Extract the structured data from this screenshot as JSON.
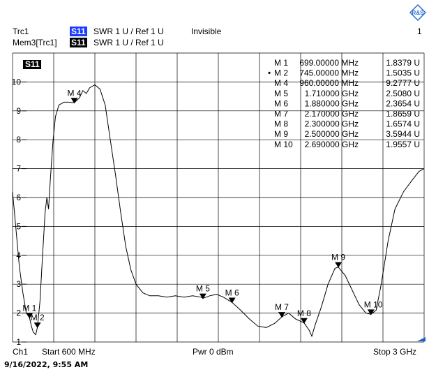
{
  "header": {
    "trace1_name": "Trc1",
    "trace1_tag": "S11",
    "trace1_format": "SWR  1 U /  Ref 1 U",
    "trace1_state": "Invisible",
    "trace2_name": "Mem3[Trc1]",
    "trace2_tag": "S11",
    "trace2_format": "SWR  1 U /  Ref 1 U",
    "channel_number": "1",
    "logo_text": "R&S"
  },
  "plot": {
    "label": "S11",
    "y_tick_labels": [
      "10",
      "9",
      "8",
      "7",
      "6",
      "5",
      "4",
      "3",
      "2",
      "1"
    ]
  },
  "markers": [
    {
      "name": "M 1",
      "label": "M 1",
      "value": "699.00000 MHz",
      "reading": "1.8379 U",
      "active": false
    },
    {
      "name": "M 2",
      "label": "M 2",
      "value": "745.00000 MHz",
      "reading": "1.5035 U",
      "active": true
    },
    {
      "name": "M 4",
      "label": "M 4",
      "value": "960.00000 MHz",
      "reading": "9.2777 U",
      "active": false
    },
    {
      "name": "M 5",
      "label": "M 5",
      "value": "1.710000 GHz",
      "reading": "2.5080 U",
      "active": false
    },
    {
      "name": "M 6",
      "label": "M 6",
      "value": "1.880000 GHz",
      "reading": "2.3654 U",
      "active": false
    },
    {
      "name": "M 7",
      "label": "M 7",
      "value": "2.170000 GHz",
      "reading": "1.8659 U",
      "active": false
    },
    {
      "name": "M 8",
      "label": "M 8",
      "value": "2.300000 GHz",
      "reading": "1.6574 U",
      "active": false
    },
    {
      "name": "M 9",
      "label": "M 9",
      "value": "2.500000 GHz",
      "reading": "3.5944 U",
      "active": false
    },
    {
      "name": "M 10",
      "label": "M 10",
      "value": "2.690000 GHz",
      "reading": "1.9557 U",
      "active": false
    }
  ],
  "marker_plot_labels": [
    "M 1",
    "M 2",
    "M 4",
    "M 5",
    "M 6",
    "M 7",
    "M 8",
    "M 9",
    "M 10"
  ],
  "trace": {
    "x_unit": "MHz",
    "y_unit": "U",
    "points": [
      [
        600,
        6.2
      ],
      [
        620,
        4.9
      ],
      [
        640,
        3.6
      ],
      [
        660,
        2.7
      ],
      [
        680,
        2.0
      ],
      [
        699,
        1.84
      ],
      [
        710,
        1.55
      ],
      [
        720,
        1.35
      ],
      [
        735,
        1.25
      ],
      [
        745,
        1.5
      ],
      [
        760,
        2.4
      ],
      [
        775,
        4.0
      ],
      [
        790,
        5.5
      ],
      [
        800,
        6.0
      ],
      [
        810,
        5.6
      ],
      [
        820,
        6.6
      ],
      [
        835,
        7.9
      ],
      [
        850,
        8.8
      ],
      [
        870,
        9.2
      ],
      [
        900,
        9.3
      ],
      [
        930,
        9.3
      ],
      [
        960,
        9.28
      ],
      [
        990,
        9.45
      ],
      [
        1010,
        9.7
      ],
      [
        1030,
        9.6
      ],
      [
        1050,
        9.8
      ],
      [
        1080,
        9.9
      ],
      [
        1110,
        9.75
      ],
      [
        1140,
        9.2
      ],
      [
        1170,
        8.0
      ],
      [
        1200,
        6.8
      ],
      [
        1230,
        5.5
      ],
      [
        1260,
        4.3
      ],
      [
        1290,
        3.5
      ],
      [
        1320,
        3.0
      ],
      [
        1360,
        2.7
      ],
      [
        1400,
        2.6
      ],
      [
        1450,
        2.6
      ],
      [
        1500,
        2.55
      ],
      [
        1550,
        2.6
      ],
      [
        1600,
        2.55
      ],
      [
        1650,
        2.6
      ],
      [
        1700,
        2.55
      ],
      [
        1710,
        2.51
      ],
      [
        1750,
        2.6
      ],
      [
        1790,
        2.65
      ],
      [
        1830,
        2.55
      ],
      [
        1880,
        2.37
      ],
      [
        1930,
        2.1
      ],
      [
        1980,
        1.8
      ],
      [
        2030,
        1.55
      ],
      [
        2080,
        1.5
      ],
      [
        2130,
        1.65
      ],
      [
        2170,
        1.87
      ],
      [
        2210,
        2.0
      ],
      [
        2250,
        1.8
      ],
      [
        2300,
        1.66
      ],
      [
        2330,
        1.4
      ],
      [
        2345,
        1.2
      ],
      [
        2365,
        1.6
      ],
      [
        2400,
        2.2
      ],
      [
        2440,
        3.0
      ],
      [
        2480,
        3.55
      ],
      [
        2500,
        3.59
      ],
      [
        2540,
        3.3
      ],
      [
        2580,
        2.8
      ],
      [
        2620,
        2.3
      ],
      [
        2660,
        2.0
      ],
      [
        2690,
        1.96
      ],
      [
        2720,
        2.1
      ],
      [
        2750,
        3.0
      ],
      [
        2790,
        4.5
      ],
      [
        2830,
        5.6
      ],
      [
        2880,
        6.2
      ],
      [
        2930,
        6.6
      ],
      [
        2970,
        6.9
      ],
      [
        3000,
        7.0
      ]
    ]
  },
  "footer": {
    "channel": "Ch1",
    "start": "Start  600 MHz",
    "power": "Pwr  0 dBm",
    "stop": "Stop  3 GHz"
  },
  "timestamp": "9/16/2022, 9:55 AM",
  "colors": {
    "trace": "#000000",
    "grid": "#000000",
    "active_tag": "#1a3cff",
    "marker_fill": "#000000"
  }
}
